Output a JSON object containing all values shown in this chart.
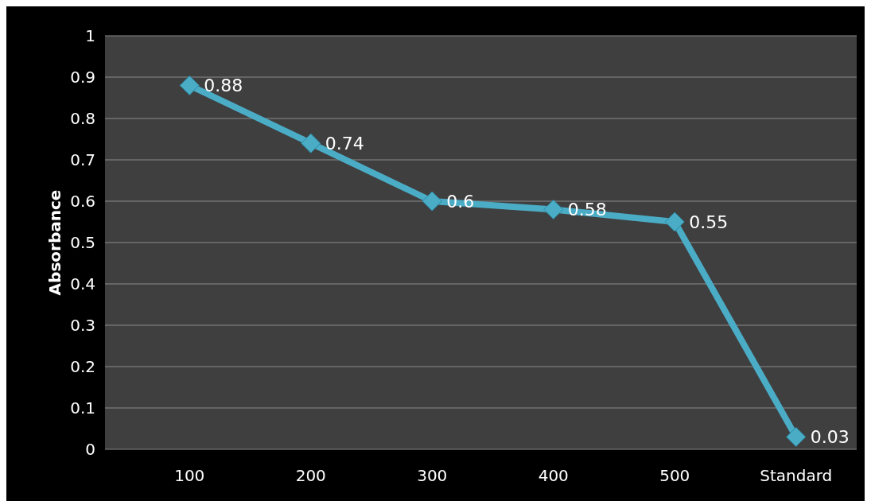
{
  "chart_data": {
    "type": "line",
    "ylabel": "Absorbance",
    "categories": [
      "100",
      "200",
      "300",
      "400",
      "500",
      "Standard"
    ],
    "series": [
      {
        "color": "#4bacc6",
        "values": [
          0.88,
          0.74,
          0.6,
          0.58,
          0.55,
          0.03
        ]
      }
    ],
    "ylim": [
      0,
      1
    ],
    "yticks": [
      0,
      0.1,
      0.2,
      0.3,
      0.4,
      0.5,
      0.6,
      0.7,
      0.8,
      0.9,
      1
    ],
    "grid": "y",
    "marker": "diamond",
    "data_labels": true
  }
}
